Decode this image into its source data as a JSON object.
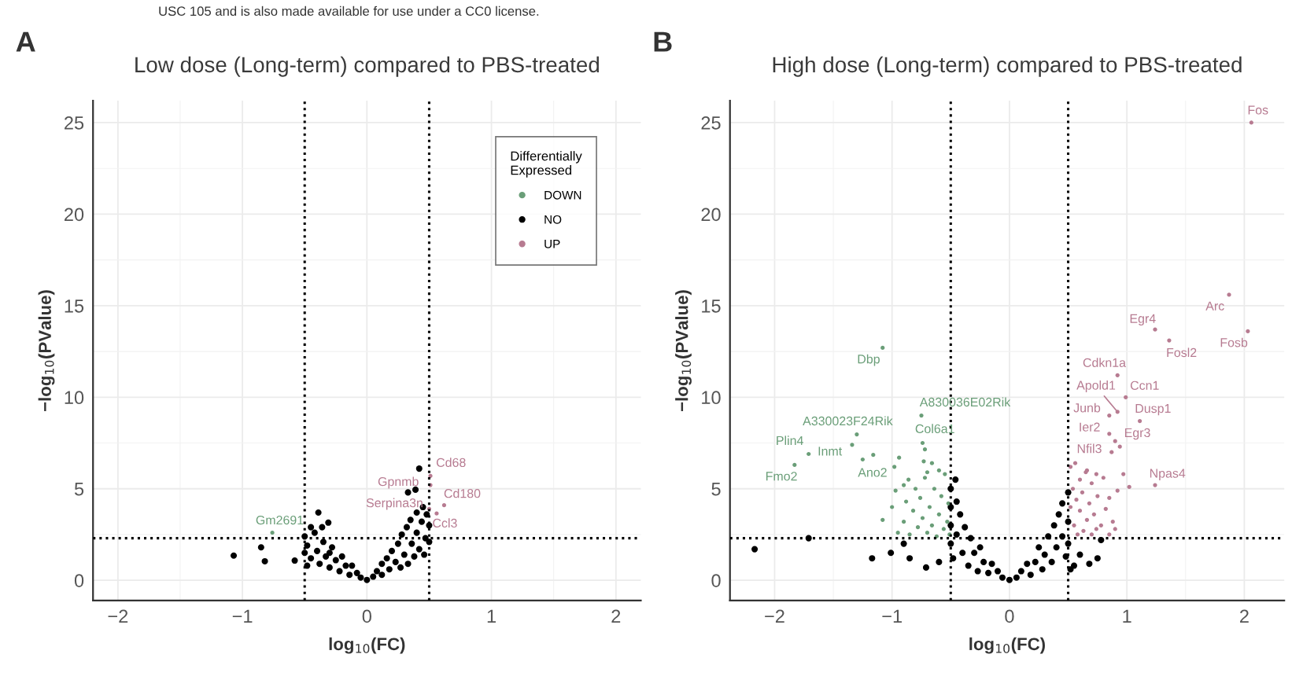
{
  "chart_data": [
    {
      "type": "scatter",
      "title": "Low dose (Long-term) compared to PBS-treated",
      "xlabel": "log$_{10}$(FC)",
      "ylabel": "−log$_{10}$(PValue)",
      "legend_title": "Differentially Expressed",
      "xlim": [
        -2.2,
        2.2
      ],
      "ylim": [
        -1.1,
        26.2
      ],
      "xticks": [
        -2,
        -1,
        0,
        1,
        2
      ],
      "yticks": [
        0,
        5,
        10,
        15,
        20,
        25
      ],
      "grid": true,
      "legend": "top right",
      "marker": "circle",
      "series": [
        {
          "name": "DOWN",
          "color": "#6a9e78",
          "x": [
            -0.76
          ],
          "values": [
            2.6
          ]
        },
        {
          "name": "NO",
          "color": "#000000",
          "x": [
            -1.07,
            -0.85,
            -0.82,
            -0.58,
            -0.39,
            -0.31,
            -0.5,
            -0.48,
            -0.5,
            -0.45,
            -0.42,
            -0.4,
            -0.38,
            -0.35,
            -0.33,
            -0.3,
            -0.28,
            -0.25,
            -0.22,
            -0.2,
            -0.17,
            -0.14,
            -0.12,
            -0.08,
            -0.05,
            -0.45,
            -0.36,
            -0.48,
            -0.3,
            0,
            0.05,
            0.08,
            0.12,
            0.12,
            0.16,
            0.18,
            0.2,
            0.23,
            0.25,
            0.27,
            0.28,
            0.3,
            0.32,
            0.33,
            0.35,
            0.36,
            0.38,
            0.4,
            0.4,
            0.42,
            0.44,
            0.45,
            0.47,
            0.48,
            0.5,
            0.5,
            0.33,
            0.39,
            0.42,
            0.46
          ],
          "values": [
            1.35,
            1.8,
            1.04,
            1.08,
            3.7,
            3.15,
            2.4,
            1.9,
            1.5,
            1.2,
            2.6,
            1.6,
            0.9,
            2.1,
            1.3,
            0.7,
            1.8,
            1.1,
            0.5,
            1.3,
            0.8,
            0.3,
            0.8,
            0.4,
            0.15,
            2.9,
            2.9,
            0.8,
            1.5,
            0.02,
            0.2,
            0.5,
            0.3,
            0.9,
            1.2,
            0.6,
            1.6,
            1.0,
            2.0,
            0.7,
            2.5,
            1.4,
            2.9,
            0.9,
            3.3,
            2.0,
            1.3,
            3.7,
            2.6,
            1.7,
            3.2,
            4.0,
            2.3,
            3.6,
            3.0,
            2.1,
            4.8,
            4.95,
            6.1,
            1.4
          ]
        },
        {
          "name": "UP",
          "color": "#b77b91",
          "x": [
            0.51,
            0.51,
            0.62,
            0.5,
            0.56
          ],
          "values": [
            5.7,
            5.2,
            4.1,
            3.9,
            3.65
          ]
        }
      ],
      "ref_lines": [
        {
          "axis": "x",
          "value": -0.5,
          "color": "#000000",
          "line_style": "dotted"
        },
        {
          "axis": "x",
          "value": 0.5,
          "color": "#000000",
          "line_style": "dotted"
        },
        {
          "axis": "y",
          "value": 2.3,
          "color": "#000000",
          "line_style": "dotted"
        }
      ],
      "annotations": [
        "USC 105 and is also made available for use under a CC0 license.",
        "A",
        {
          "text": "Gm2691",
          "x": -0.76,
          "y": 2.6
        },
        {
          "text": "Cd68",
          "x": 0.51,
          "y": 5.7
        },
        {
          "text": "Gpnmb",
          "x": 0.51,
          "y": 5.2
        },
        {
          "text": "Cd180",
          "x": 0.62,
          "y": 4.1
        },
        {
          "text": "Serpina3n",
          "x": 0.5,
          "y": 3.9
        },
        {
          "text": "Ccl3",
          "x": 0.56,
          "y": 3.65
        }
      ]
    },
    {
      "type": "scatter",
      "title": "High dose (Long-term) compared to PBS-treated",
      "xlabel": "log$_{10}$(FC)",
      "ylabel": "−log$_{10}$(PValue)",
      "xlim": [
        -2.38,
        2.34
      ],
      "ylim": [
        -1.1,
        26.2
      ],
      "xticks": [
        -2,
        -1,
        0,
        1,
        2
      ],
      "yticks": [
        0,
        5,
        10,
        15,
        20,
        25
      ],
      "grid": true,
      "marker": "circle",
      "series": [
        {
          "color": "#6a9e78",
          "x": [
            -1.08,
            -1.3,
            -1.34,
            -1.71,
            -1.83,
            -1.25,
            -1.16,
            -0.75,
            -0.74,
            -0.72,
            -1.08,
            -0.97,
            -0.94,
            -0.86,
            -0.73,
            -0.66,
            -0.98,
            -1.0,
            -0.95,
            -0.9,
            -0.88,
            -0.85,
            -0.82,
            -0.8,
            -0.78,
            -0.76,
            -0.74,
            -0.72,
            -0.7,
            -0.68,
            -0.66,
            -0.64,
            -0.62,
            -0.6,
            -0.58,
            -0.56,
            -0.55,
            -0.53,
            -0.52,
            -0.51,
            -0.6,
            -0.7,
            -0.9
          ],
          "values": [
            12.7,
            7.97,
            7.4,
            6.9,
            6.3,
            6.6,
            6.85,
            9.0,
            7.5,
            7.15,
            3.3,
            4.9,
            6.7,
            5.5,
            6.5,
            6.4,
            6.2,
            4.0,
            2.6,
            3.2,
            4.3,
            2.5,
            3.8,
            5.0,
            2.9,
            4.5,
            3.4,
            5.6,
            2.6,
            4.0,
            3.0,
            5.0,
            2.4,
            3.6,
            4.6,
            2.8,
            5.8,
            3.2,
            4.2,
            2.5,
            6.0,
            5.9,
            5.2
          ]
        },
        {
          "color": "#000000",
          "x": [
            -2.17,
            -1.71,
            -1.17,
            -1.01,
            -0.71,
            -0.46,
            -0.9,
            -0.85,
            -0.6,
            -0.5,
            -0.5,
            -0.5,
            -0.5,
            -0.48,
            -0.45,
            -0.45,
            -0.42,
            -0.4,
            -0.38,
            -0.35,
            -0.33,
            -0.3,
            -0.27,
            -0.25,
            -0.22,
            -0.18,
            -0.15,
            -0.1,
            -0.06,
            0,
            0.06,
            0.1,
            0.15,
            0.18,
            0.22,
            0.25,
            0.28,
            0.3,
            0.33,
            0.36,
            0.38,
            0.4,
            0.42,
            0.45,
            0.45,
            0.48,
            0.5,
            0.5,
            0.5,
            0.55,
            0.52,
            0.78,
            0.75,
            0.6,
            0.68
          ],
          "values": [
            1.7,
            2.3,
            1.2,
            1.5,
            0.7,
            5.5,
            2.0,
            1.2,
            1.0,
            5.0,
            4.0,
            3.0,
            2.0,
            1.2,
            4.3,
            2.5,
            3.6,
            1.5,
            2.9,
            0.8,
            2.3,
            1.5,
            0.5,
            1.8,
            1.0,
            0.4,
            0.9,
            0.5,
            0.15,
            0.02,
            0.15,
            0.5,
            0.9,
            0.3,
            1.0,
            1.8,
            0.6,
            1.4,
            2.4,
            1.0,
            3.0,
            1.8,
            3.6,
            2.4,
            4.2,
            1.3,
            3.2,
            4.8,
            2.0,
            0.8,
            0.6,
            2.2,
            1.2,
            1.4,
            0.9
          ]
        },
        {
          "color": "#b77b91",
          "x": [
            2.06,
            1.87,
            2.03,
            1.24,
            1.36,
            0.92,
            0.99,
            0.92,
            0.85,
            1.11,
            0.85,
            0.9,
            0.94,
            0.87,
            1.24,
            0.97,
            1.02,
            0.92,
            0.52,
            0.56,
            0.6,
            0.62,
            0.65,
            0.68,
            0.7,
            0.72,
            0.75,
            0.78,
            0.8,
            0.82,
            0.85,
            0.88,
            0.55,
            0.58,
            0.6,
            0.63,
            0.66,
            0.7,
            0.74,
            0.52,
            0.54,
            0.57,
            0.9,
            0.85,
            0.66,
            0.74
          ],
          "values": [
            25.0,
            15.6,
            13.6,
            13.7,
            13.1,
            11.2,
            10.0,
            9.2,
            9.0,
            8.7,
            8.0,
            7.6,
            7.3,
            7.0,
            5.2,
            5.8,
            5.1,
            4.9,
            6.2,
            6.4,
            5.5,
            4.8,
            5.9,
            4.2,
            5.3,
            3.6,
            4.6,
            3.0,
            5.6,
            3.9,
            4.5,
            3.2,
            3.0,
            2.5,
            3.8,
            2.7,
            3.3,
            2.5,
            2.8,
            4.0,
            5.0,
            4.4,
            2.8,
            2.5,
            6.0,
            5.8
          ]
        }
      ],
      "ref_lines": [
        {
          "axis": "x",
          "value": -0.5,
          "color": "#000000",
          "line_style": "dotted"
        },
        {
          "axis": "x",
          "value": 0.5,
          "color": "#000000",
          "line_style": "dotted"
        },
        {
          "axis": "y",
          "value": 2.3,
          "color": "#000000",
          "line_style": "dotted"
        }
      ],
      "annotations": [
        "B",
        {
          "text": "Dbp",
          "x": -1.08,
          "y": 12.7
        },
        {
          "text": "A330023F24Rik",
          "x": -1.3,
          "y": 7.97
        },
        {
          "text": "Inmt",
          "x": -1.34,
          "y": 7.4
        },
        {
          "text": "Plin4",
          "x": -1.71,
          "y": 6.9
        },
        {
          "text": "Fmo2",
          "x": -1.83,
          "y": 6.3
        },
        {
          "text": "Ano2",
          "x": -1.25,
          "y": 6.6
        },
        {
          "text": "A830036E02Rik",
          "x": -0.75,
          "y": 9.0
        },
        {
          "text": "Col6a1",
          "x": -0.74,
          "y": 7.5
        },
        {
          "text": "Fos",
          "x": 2.06,
          "y": 25.0
        },
        {
          "text": "Arc",
          "x": 1.87,
          "y": 15.6
        },
        {
          "text": "Fosb",
          "x": 2.03,
          "y": 13.6
        },
        {
          "text": "Egr4",
          "x": 1.24,
          "y": 13.7
        },
        {
          "text": "Fosl2",
          "x": 1.36,
          "y": 13.1
        },
        {
          "text": "Cdkn1a",
          "x": 0.92,
          "y": 11.2
        },
        {
          "text": "Ccn1",
          "x": 0.99,
          "y": 10.0
        },
        {
          "text": "Apold1",
          "x": 0.92,
          "y": 9.2
        },
        {
          "text": "Junb",
          "x": 0.85,
          "y": 9.0
        },
        {
          "text": "Dusp1",
          "x": 1.11,
          "y": 8.7
        },
        {
          "text": "Ier2",
          "x": 0.85,
          "y": 8.0
        },
        {
          "text": "Egr3",
          "x": 0.9,
          "y": 7.6
        },
        {
          "text": "Nfil3",
          "x": 0.87,
          "y": 7.0
        },
        {
          "text": "Npas4",
          "x": 1.24,
          "y": 5.2
        }
      ]
    }
  ]
}
